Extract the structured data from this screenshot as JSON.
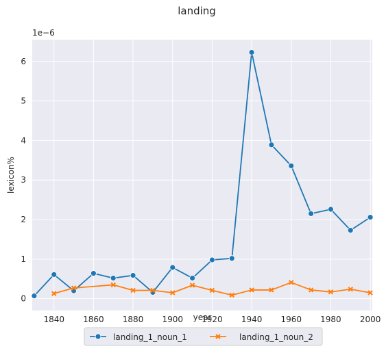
{
  "chart_data": {
    "type": "line",
    "title": "landing",
    "xlabel": "year",
    "ylabel": "lexicon%",
    "y_offset_label": "1e−6",
    "xlim": [
      1829,
      2001
    ],
    "ylim": [
      -0.3,
      6.55
    ],
    "x_ticks": [
      1840,
      1860,
      1880,
      1900,
      1920,
      1940,
      1960,
      1980,
      2000
    ],
    "y_ticks": [
      0,
      1,
      2,
      3,
      4,
      5,
      6
    ],
    "grid": true,
    "legend_position": "bottom-center",
    "series": [
      {
        "name": "landing_1_noun_1",
        "color": "#1f77b4",
        "marker": "circle",
        "points": [
          [
            1830,
            0.07
          ],
          [
            1840,
            0.61
          ],
          [
            1850,
            0.2
          ],
          [
            1860,
            0.64
          ],
          [
            1870,
            0.52
          ],
          [
            1880,
            0.59
          ],
          [
            1890,
            0.16
          ],
          [
            1900,
            0.79
          ],
          [
            1910,
            0.52
          ],
          [
            1920,
            0.98
          ],
          [
            1930,
            1.02
          ],
          [
            1940,
            6.23
          ],
          [
            1950,
            3.89
          ],
          [
            1960,
            3.36
          ],
          [
            1970,
            2.15
          ],
          [
            1980,
            2.26
          ],
          [
            1990,
            1.73
          ],
          [
            2000,
            2.06
          ]
        ]
      },
      {
        "name": "landing_1_noun_2",
        "color": "#ff7f0e",
        "marker": "x",
        "points": [
          [
            1840,
            0.13
          ],
          [
            1850,
            0.27
          ],
          [
            1870,
            0.35
          ],
          [
            1880,
            0.21
          ],
          [
            1890,
            0.21
          ],
          [
            1900,
            0.15
          ],
          [
            1910,
            0.34
          ],
          [
            1920,
            0.21
          ],
          [
            1930,
            0.09
          ],
          [
            1940,
            0.22
          ],
          [
            1950,
            0.22
          ],
          [
            1960,
            0.41
          ],
          [
            1970,
            0.22
          ],
          [
            1980,
            0.17
          ],
          [
            1990,
            0.24
          ],
          [
            2000,
            0.15
          ]
        ]
      }
    ]
  }
}
